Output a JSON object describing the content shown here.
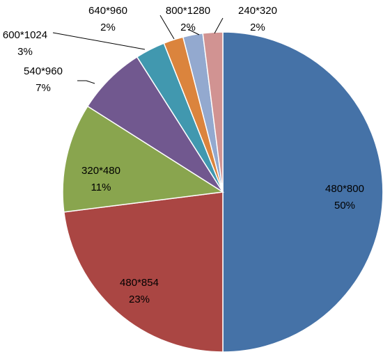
{
  "chart_data": {
    "type": "pie",
    "title": "",
    "start_angle_deg": 0,
    "direction": "clockwise",
    "legend": "none",
    "slices": [
      {
        "label": "480*800",
        "percent_label": "50%",
        "value": 50,
        "color": "#4572A7"
      },
      {
        "label": "480*854",
        "percent_label": "23%",
        "value": 23,
        "color": "#AA4643"
      },
      {
        "label": "320*480",
        "percent_label": "11%",
        "value": 11,
        "color": "#89A54E"
      },
      {
        "label": "540*960",
        "percent_label": "7%",
        "value": 7,
        "color": "#71588F"
      },
      {
        "label": "600*1024",
        "percent_label": "3%",
        "value": 3,
        "color": "#4198AF"
      },
      {
        "label": "640*960",
        "percent_label": "2%",
        "value": 2,
        "color": "#DB843D"
      },
      {
        "label": "800*1280",
        "percent_label": "2%",
        "value": 2,
        "color": "#93A9CF"
      },
      {
        "label": "240*320",
        "percent_label": "2%",
        "value": 2,
        "color": "#D19392"
      }
    ]
  }
}
